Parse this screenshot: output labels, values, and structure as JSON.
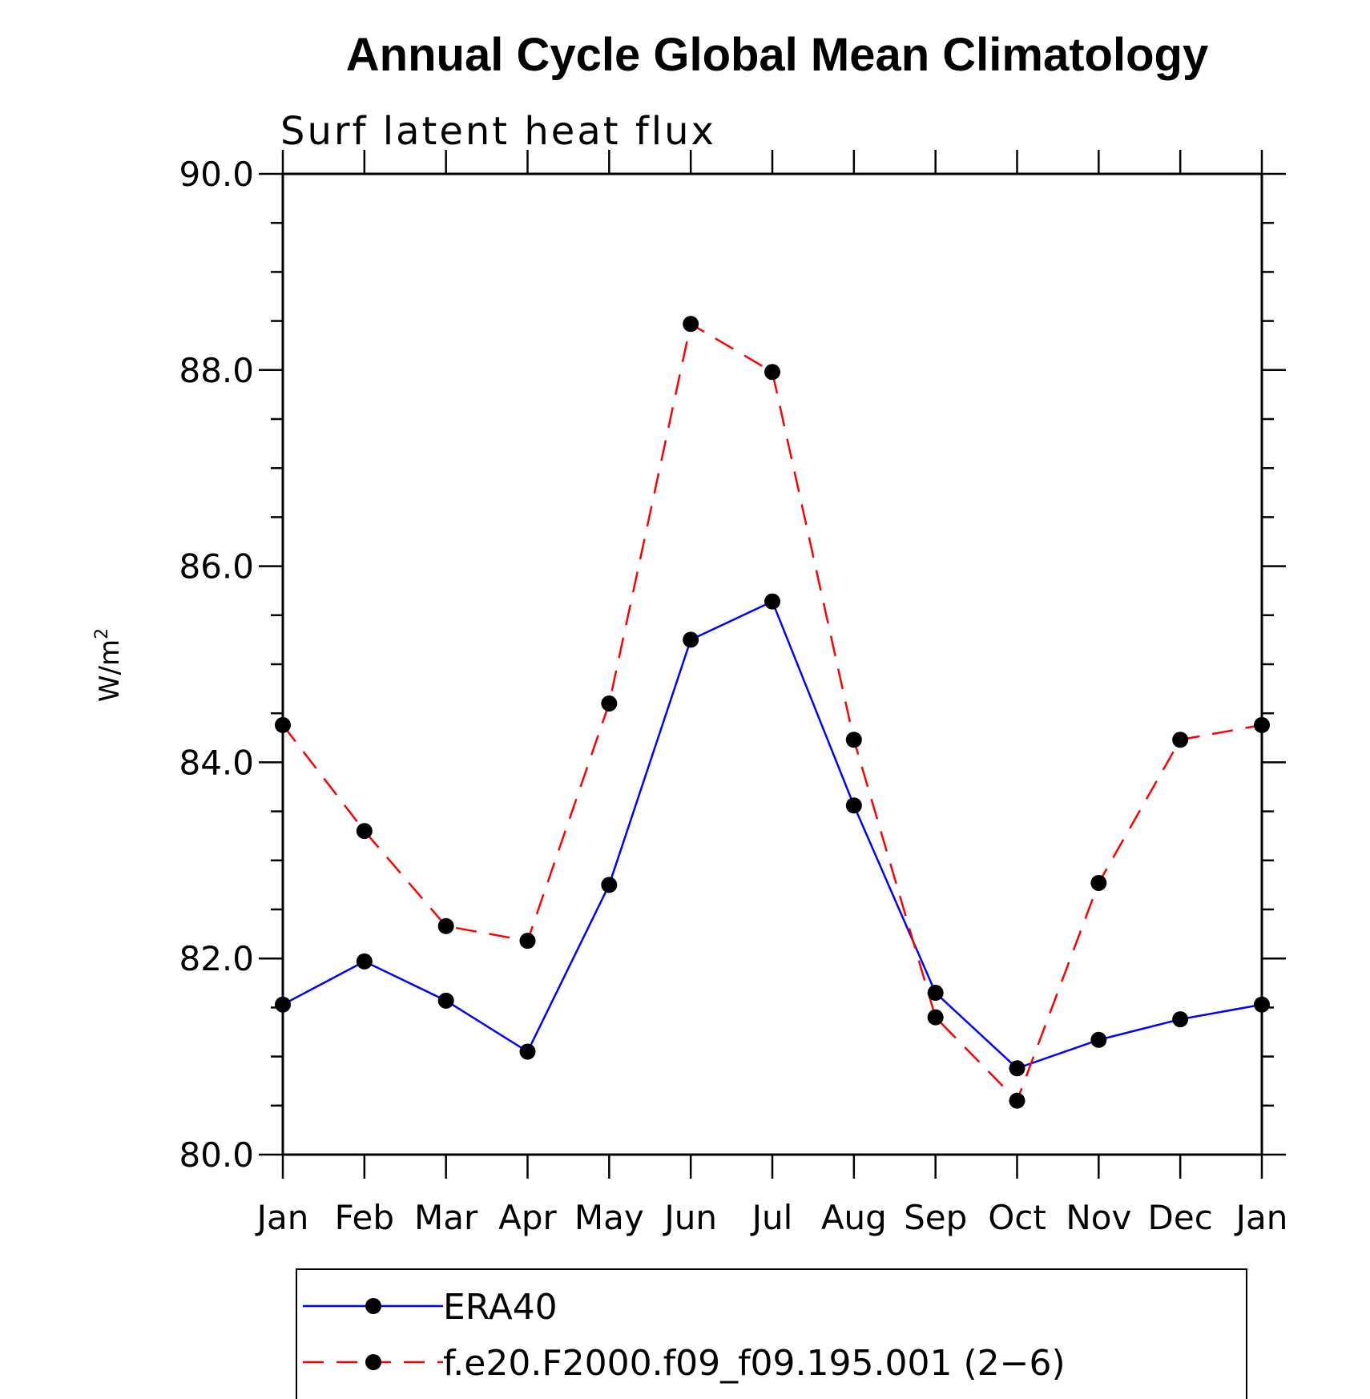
{
  "chart_data": {
    "type": "line",
    "title": "Annual Cycle Global Mean Climatology",
    "subtitle": "Surf latent heat flux",
    "ylabel_base": "W/m",
    "ylabel_sup": "2",
    "xlabel": "",
    "categories": [
      "Jan",
      "Feb",
      "Mar",
      "Apr",
      "May",
      "Jun",
      "Jul",
      "Aug",
      "Sep",
      "Oct",
      "Nov",
      "Dec",
      "Jan"
    ],
    "ylim": [
      80.0,
      90.0
    ],
    "yticks": [
      80.0,
      82.0,
      84.0,
      86.0,
      88.0,
      90.0
    ],
    "ytick_labels": [
      "80.0",
      "82.0",
      "84.0",
      "86.0",
      "88.0",
      "90.0"
    ],
    "grid": false,
    "legend_position": "bottom",
    "series": [
      {
        "name": "ERA40",
        "color": "#0000ff",
        "dashed": false,
        "values": [
          81.53,
          81.97,
          81.57,
          81.05,
          82.75,
          85.25,
          85.64,
          83.56,
          81.65,
          80.88,
          81.17,
          81.38,
          81.53
        ]
      },
      {
        "name": "f.e20.F2000.f09_f09.195.001 (2−6)",
        "color": "#ff0000",
        "dashed": true,
        "values": [
          84.38,
          83.3,
          82.33,
          82.18,
          84.6,
          88.47,
          87.98,
          84.23,
          81.4,
          80.55,
          82.77,
          84.23,
          84.38
        ]
      }
    ]
  }
}
